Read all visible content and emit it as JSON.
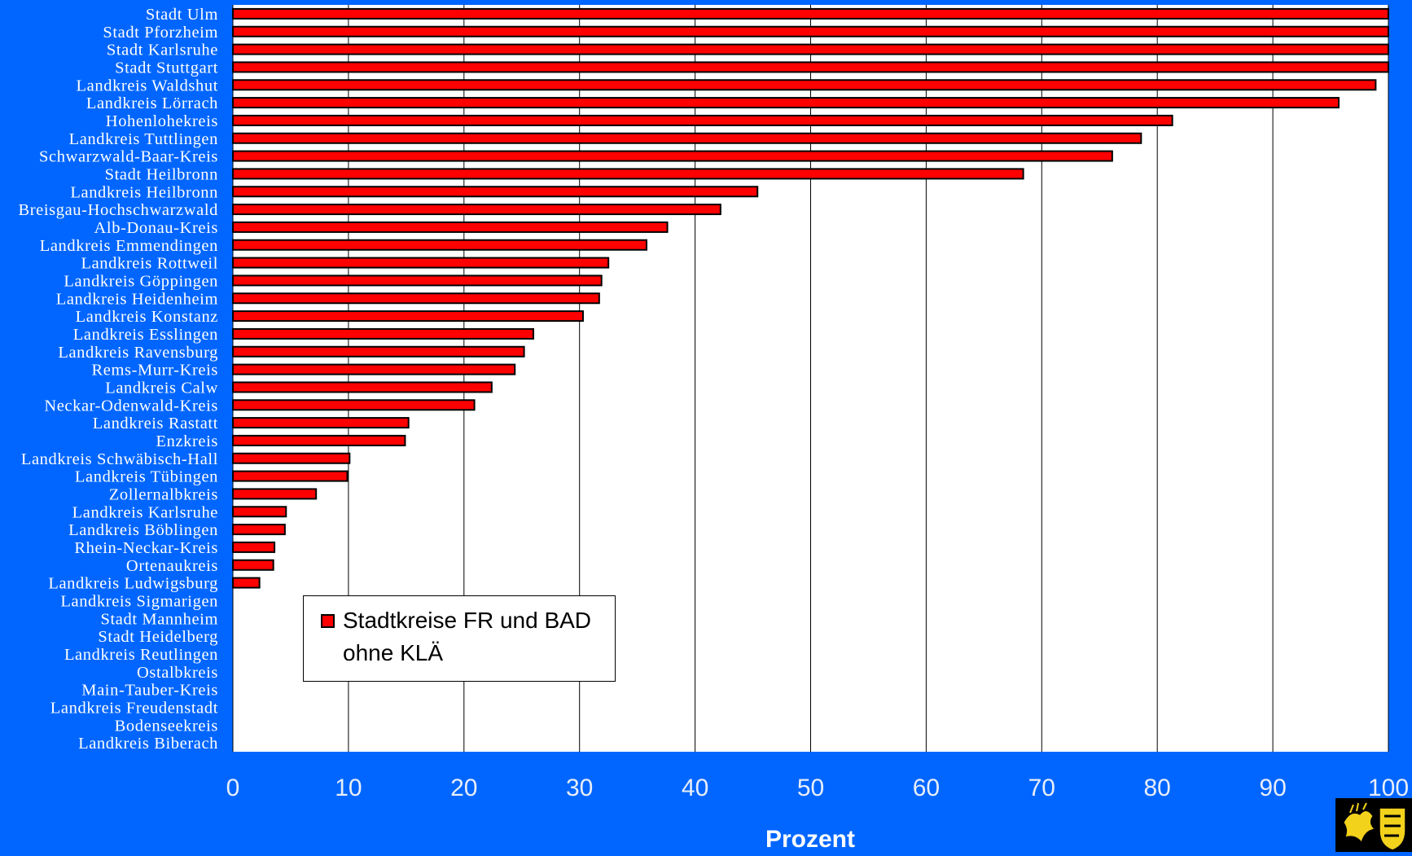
{
  "colors": {
    "background": "#0066FF",
    "plot_area": "#FFFFFF",
    "bar_fill": "#FF0000",
    "bar_border": "#000000",
    "tick_text": "#E8EEF8"
  },
  "legend": {
    "label": "Stadtkreise FR und BAD ohne KLÄ",
    "placement": "inside-lower-left"
  },
  "emblem": {
    "icon": "coat-of-arms-icon"
  },
  "chart_data": {
    "type": "bar",
    "orientation": "horizontal",
    "xlabel": "Prozent",
    "xlim": [
      0,
      100
    ],
    "xticks": [
      0,
      10,
      20,
      30,
      40,
      50,
      60,
      70,
      80,
      90,
      100
    ],
    "grid": "vertical",
    "categories": [
      "Stadt Ulm",
      "Stadt Pforzheim",
      "Stadt Karlsruhe",
      "Stadt Stuttgart",
      "Landkreis Waldshut",
      "Landkreis Lörrach",
      "Hohenlohekreis",
      "Landkreis Tuttlingen",
      "Schwarzwald-Baar-Kreis",
      "Stadt Heilbronn",
      "Landkreis Heilbronn",
      "Breisgau-Hochschwarzwald",
      "Alb-Donau-Kreis",
      "Landkreis Emmendingen",
      "Landkreis Rottweil",
      "Landkreis Göppingen",
      "Landkreis Heidenheim",
      "Landkreis Konstanz",
      "Landkreis Esslingen",
      "Landkreis Ravensburg",
      "Rems-Murr-Kreis",
      "Landkreis Calw",
      "Neckar-Odenwald-Kreis",
      "Landkreis Rastatt",
      "Enzkreis",
      "Landkreis Schwäbisch-Hall",
      "Landkreis Tübingen",
      "Zollernalbkreis",
      "Landkreis Karlsruhe",
      "Landkreis Böblingen",
      "Rhein-Neckar-Kreis",
      "Ortenaukreis",
      "Landkreis Ludwigsburg",
      "Landkreis Sigmarigen",
      "Stadt Mannheim",
      "Stadt Heidelberg",
      "Landkreis Reutlingen",
      "Ostalbkreis",
      "Main-Tauber-Kreis",
      "Landkreis Freudenstadt",
      "Bodenseekreis",
      "Landkreis Biberach"
    ],
    "series": [
      {
        "name": "Stadtkreise FR und BAD ohne KLÄ",
        "values": [
          100,
          100,
          100,
          100,
          98.9,
          95.7,
          81.3,
          78.6,
          76.1,
          68.4,
          45.4,
          42.2,
          37.6,
          35.8,
          32.5,
          31.9,
          31.7,
          30.3,
          26.0,
          25.2,
          24.4,
          22.4,
          20.9,
          15.2,
          14.9,
          10.1,
          9.9,
          7.2,
          4.6,
          4.5,
          3.6,
          3.5,
          2.3,
          0,
          0,
          0,
          0,
          0,
          0,
          0,
          0,
          0
        ]
      }
    ]
  }
}
